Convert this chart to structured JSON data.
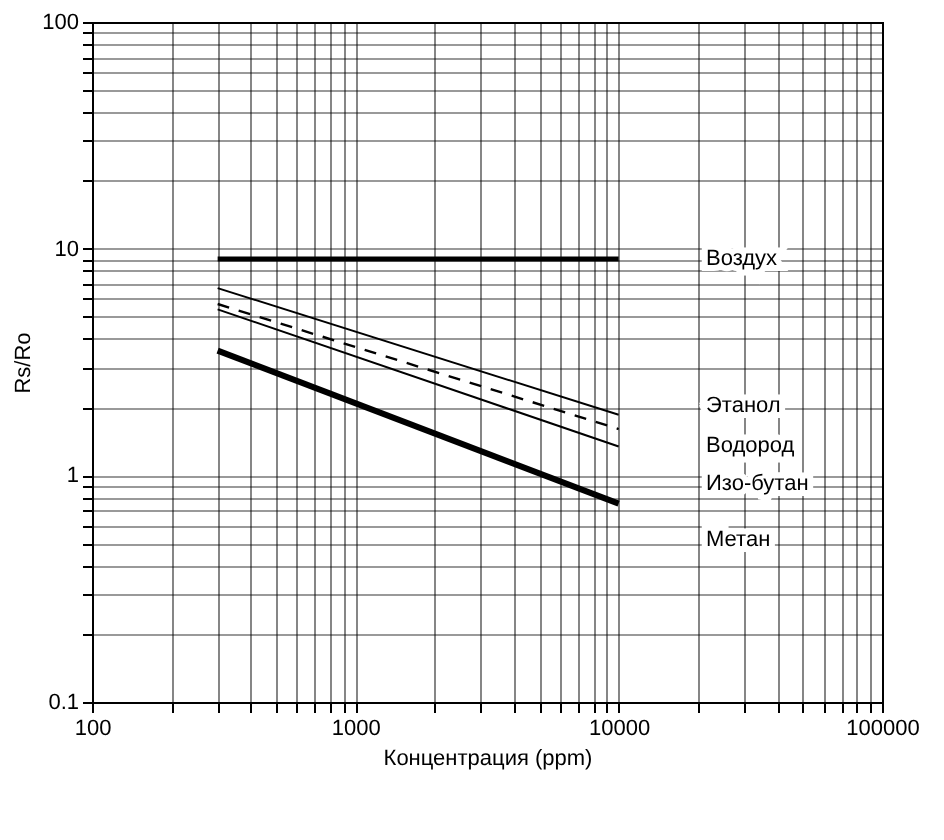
{
  "chart_data": {
    "type": "line",
    "xlabel": "Концентрация (ppm)",
    "ylabel": "Rs/Ro",
    "log": "xy",
    "xlim": [
      100,
      100000
    ],
    "ylim": [
      0.1,
      100
    ],
    "xticks": [
      100,
      1000,
      10000,
      100000
    ],
    "yticks": [
      0.1,
      1,
      10,
      100
    ],
    "grid": true,
    "marker": "none",
    "x": [
      300,
      10000
    ],
    "series": [
      {
        "name": "Воздух",
        "color": "#000000",
        "values": [
          9,
          9
        ],
        "line_style": "solid"
      },
      {
        "name": "Этанол",
        "color": "#000000",
        "values": [
          6.7,
          1.85
        ],
        "line_style": "solid"
      },
      {
        "name": "Водород",
        "color": "#000000",
        "values": [
          5.7,
          1.6
        ],
        "line_style": "dashed"
      },
      {
        "name": "Изо-бутан",
        "color": "#000000",
        "values": [
          5.4,
          1.34
        ],
        "line_style": "solid"
      },
      {
        "name": "Метан",
        "color": "#000000",
        "values": [
          3.55,
          0.75
        ],
        "line_style": "solid"
      }
    ]
  }
}
